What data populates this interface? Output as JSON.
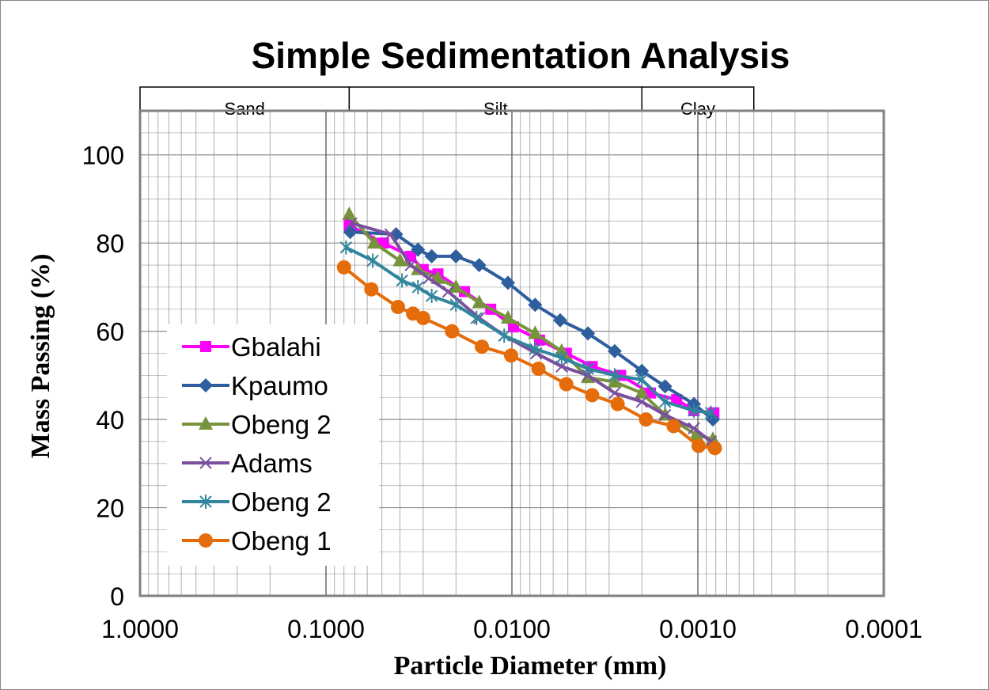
{
  "chart_data": {
    "type": "line",
    "title": "Simple Sedimentation Analysis",
    "xlabel": "Particle Diameter (mm)",
    "ylabel": "Mass Passing (%)",
    "x_scale": "log",
    "x_reversed": true,
    "xlim": [
      1.0,
      0.0001
    ],
    "ylim": [
      0,
      110
    ],
    "x_ticks": [
      1.0,
      0.1,
      0.01,
      0.001,
      0.0001
    ],
    "x_tick_labels": [
      "1.0000",
      "0.1000",
      "0.0100",
      "0.0010",
      "0.0001"
    ],
    "y_ticks": [
      0,
      20,
      40,
      60,
      80,
      100
    ],
    "y_tick_labels": [
      "0",
      "20",
      "40",
      "60",
      "80",
      "100"
    ],
    "grid": true,
    "legend_position": "left",
    "zones": [
      {
        "label": "Sand",
        "from": 1.0,
        "to": 0.075
      },
      {
        "label": "Silt",
        "from": 0.075,
        "to": 0.002
      },
      {
        "label": "Clay",
        "from": 0.002,
        "to": 0.0005
      }
    ],
    "series": [
      {
        "name": "Gbalahi",
        "color": "#FF00FF",
        "marker": "square",
        "x": [
          0.075,
          0.049,
          0.035,
          0.03,
          0.025,
          0.018,
          0.013,
          0.0098,
          0.0071,
          0.0051,
          0.0037,
          0.0026,
          0.0018,
          0.0013,
          0.00105,
          0.00082
        ],
        "y": [
          84,
          80,
          77,
          74,
          73,
          69,
          65,
          61,
          58,
          55,
          52,
          50,
          46,
          44.5,
          42,
          41.5
        ]
      },
      {
        "name": "Kpaumo",
        "color": "#2E5E9E",
        "marker": "diamond",
        "x": [
          0.074,
          0.042,
          0.032,
          0.027,
          0.02,
          0.015,
          0.0105,
          0.0075,
          0.0055,
          0.0039,
          0.0028,
          0.002,
          0.0015,
          0.00105,
          0.00083
        ],
        "y": [
          82.5,
          82,
          78.5,
          77,
          77,
          75,
          71,
          66,
          62.5,
          59.5,
          55.5,
          51,
          47.5,
          43.5,
          40
        ]
      },
      {
        "name": "Obeng 2",
        "color": "#77933C",
        "marker": "triangle",
        "x": [
          0.075,
          0.055,
          0.04,
          0.032,
          0.025,
          0.02,
          0.015,
          0.0105,
          0.0075,
          0.0054,
          0.0039,
          0.0028,
          0.002,
          0.0015,
          0.00102,
          0.00083
        ],
        "y": [
          86.5,
          80,
          76,
          74,
          72,
          70,
          66.5,
          63,
          59.5,
          55.5,
          49.5,
          48.5,
          46,
          41,
          36.5,
          35.5
        ]
      },
      {
        "name": "Adams",
        "color": "#7A4F9E",
        "marker": "x",
        "x": [
          0.073,
          0.045,
          0.035,
          0.028,
          0.022,
          0.015,
          0.011,
          0.0074,
          0.0054,
          0.0039,
          0.0028,
          0.002,
          0.0015,
          0.00105,
          0.00085
        ],
        "y": [
          84.5,
          82,
          75,
          72,
          69,
          63,
          59,
          55,
          52,
          50,
          46,
          44,
          41,
          38,
          35
        ]
      },
      {
        "name": "Obeng 2",
        "color": "#31859C",
        "marker": "star",
        "x": [
          0.078,
          0.056,
          0.039,
          0.032,
          0.027,
          0.02,
          0.0155,
          0.011,
          0.0075,
          0.0054,
          0.0039,
          0.0028,
          0.002,
          0.0015,
          0.00105,
          0.00085
        ],
        "y": [
          79,
          76,
          71.5,
          70,
          68,
          66,
          63,
          59,
          56,
          54,
          51.5,
          50,
          49,
          44,
          42,
          41.5
        ]
      },
      {
        "name": "Obeng 1",
        "color": "#E46C0A",
        "marker": "circle",
        "x": [
          0.08,
          0.057,
          0.041,
          0.034,
          0.03,
          0.021,
          0.0145,
          0.0101,
          0.0072,
          0.0051,
          0.0037,
          0.0027,
          0.0019,
          0.00135,
          0.00099,
          0.00081
        ],
        "y": [
          74.5,
          69.5,
          65.5,
          64,
          63,
          60,
          56.5,
          54.5,
          51.5,
          48,
          45.5,
          43.5,
          40,
          38.5,
          34,
          33.5
        ]
      }
    ]
  }
}
